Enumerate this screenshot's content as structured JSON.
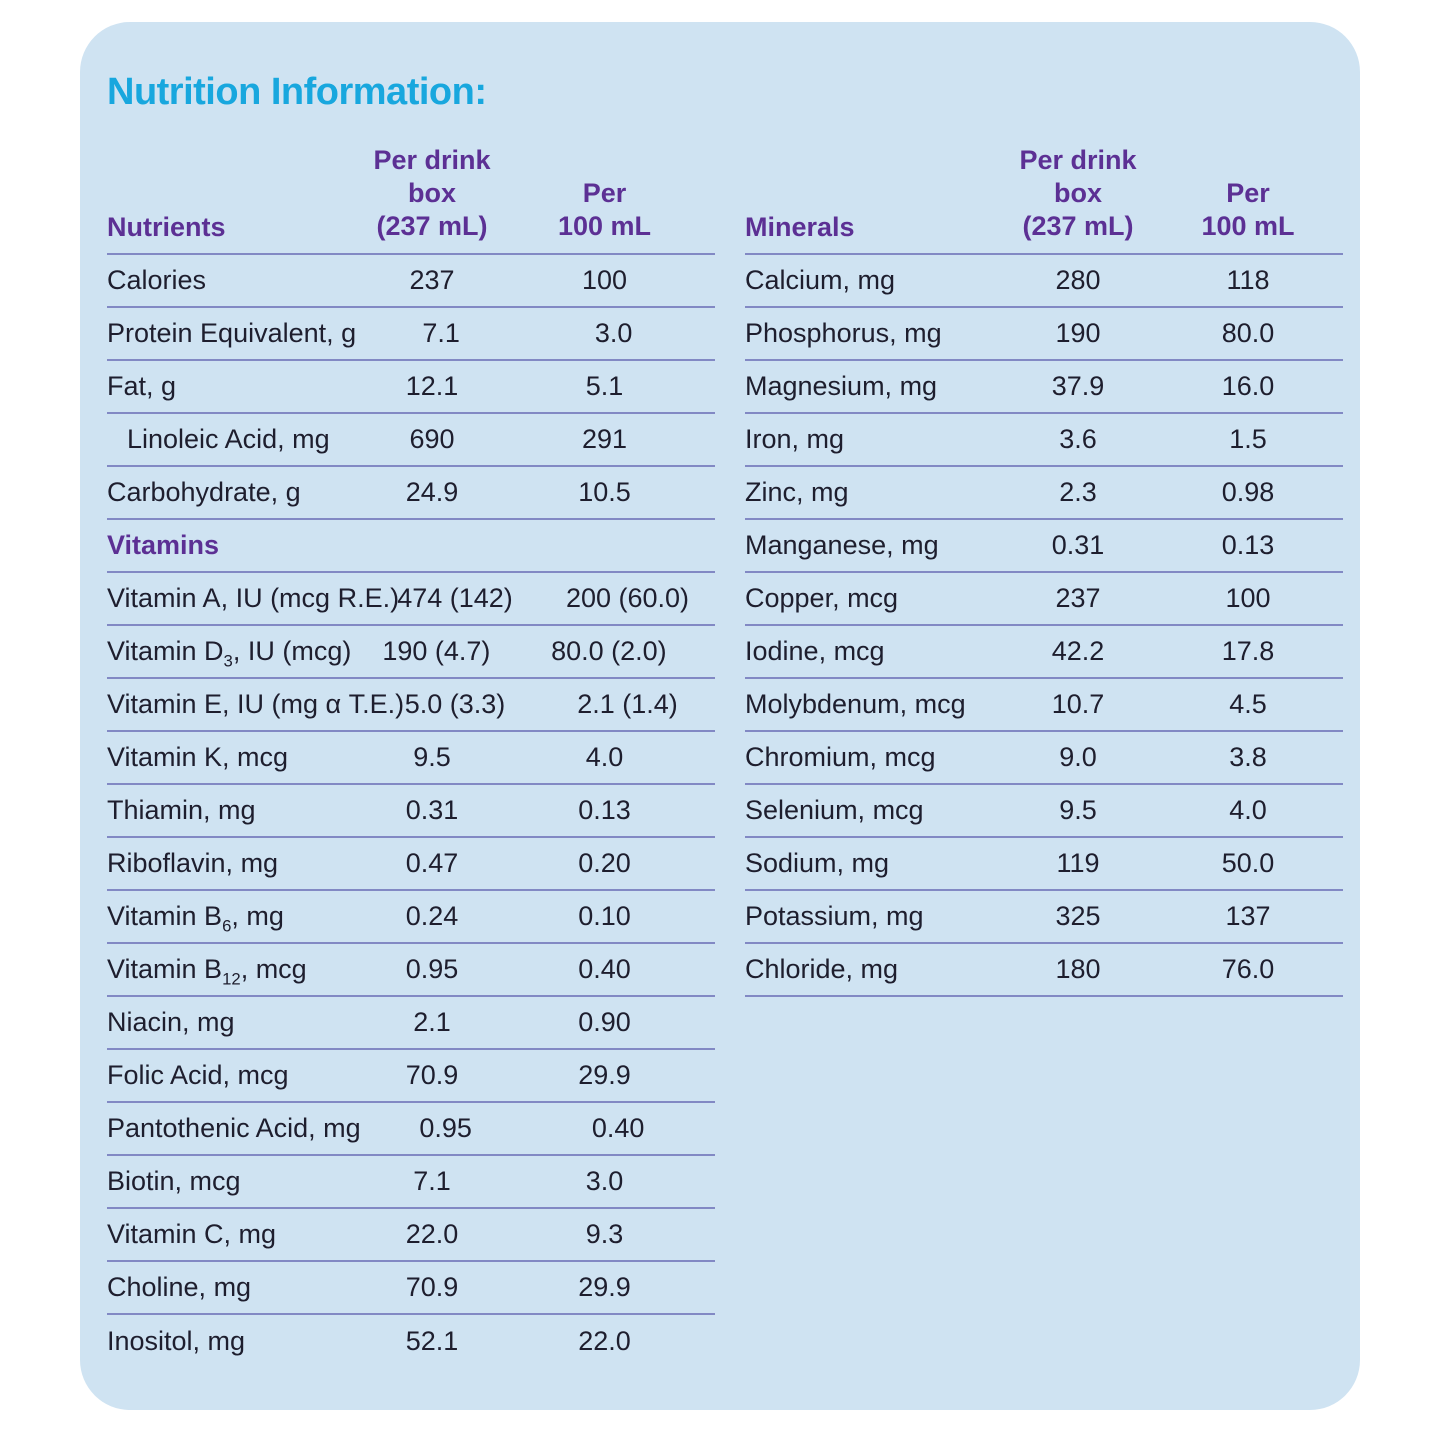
{
  "title": "Nutrition Information:",
  "colors": {
    "title": "#18a7de",
    "section": "#5c3094",
    "text": "#1e1e2e",
    "divider": "#8289c4",
    "card_bg": "#cfe3f2",
    "page_bg": "#ffffff"
  },
  "tables": [
    {
      "id": "nutrients",
      "columns": {
        "label": "Nutrients",
        "col1_line1": "Per drink box",
        "col1_line2": "(237 mL)",
        "col2_line1": "Per",
        "col2_line2": "100 mL"
      },
      "rows": [
        {
          "label": "Calories",
          "per_box": "237",
          "per_100ml": "100"
        },
        {
          "label": "Protein Equivalent, g",
          "per_box": "7.1",
          "per_100ml": "3.0"
        },
        {
          "label": "Fat, g",
          "per_box": "12.1",
          "per_100ml": "5.1"
        },
        {
          "label": "Linoleic Acid, mg",
          "per_box": "690",
          "per_100ml": "291",
          "indent": true
        },
        {
          "label": "Carbohydrate, g",
          "per_box": "24.9",
          "per_100ml": "10.5"
        },
        {
          "section": "Vitamins"
        },
        {
          "label": "Vitamin A, IU (mcg R.E.)",
          "per_box": "474 (142)",
          "per_100ml": "200 (60.0)"
        },
        {
          "label": "Vitamin D~3~, IU (mcg)",
          "per_box": "190 (4.7)",
          "per_100ml": "80.0 (2.0)"
        },
        {
          "label": "Vitamin E, IU (mg α T.E.)",
          "per_box": "5.0 (3.3)",
          "per_100ml": "2.1 (1.4)"
        },
        {
          "label": "Vitamin K, mcg",
          "per_box": "9.5",
          "per_100ml": "4.0"
        },
        {
          "label": "Thiamin, mg",
          "per_box": "0.31",
          "per_100ml": "0.13"
        },
        {
          "label": "Riboflavin, mg",
          "per_box": "0.47",
          "per_100ml": "0.20"
        },
        {
          "label": "Vitamin B~6~, mg",
          "per_box": "0.24",
          "per_100ml": "0.10"
        },
        {
          "label": "Vitamin B~12~, mcg",
          "per_box": "0.95",
          "per_100ml": "0.40"
        },
        {
          "label": "Niacin, mg",
          "per_box": "2.1",
          "per_100ml": "0.90"
        },
        {
          "label": "Folic Acid, mcg",
          "per_box": "70.9",
          "per_100ml": "29.9"
        },
        {
          "label": "Pantothenic Acid, mg",
          "per_box": "0.95",
          "per_100ml": "0.40"
        },
        {
          "label": "Biotin, mcg",
          "per_box": "7.1",
          "per_100ml": "3.0"
        },
        {
          "label": "Vitamin C, mg",
          "per_box": "22.0",
          "per_100ml": "9.3"
        },
        {
          "label": "Choline, mg",
          "per_box": "70.9",
          "per_100ml": "29.9"
        },
        {
          "label": "Inositol, mg",
          "per_box": "52.1",
          "per_100ml": "22.0"
        }
      ]
    },
    {
      "id": "minerals",
      "columns": {
        "label": "Minerals",
        "col1_line1": "Per drink box",
        "col1_line2": "(237 mL)",
        "col2_line1": "Per",
        "col2_line2": "100 mL"
      },
      "rows": [
        {
          "label": "Calcium, mg",
          "per_box": "280",
          "per_100ml": "118"
        },
        {
          "label": "Phosphorus, mg",
          "per_box": "190",
          "per_100ml": "80.0"
        },
        {
          "label": "Magnesium, mg",
          "per_box": "37.9",
          "per_100ml": "16.0"
        },
        {
          "label": "Iron, mg",
          "per_box": "3.6",
          "per_100ml": "1.5"
        },
        {
          "label": "Zinc, mg",
          "per_box": "2.3",
          "per_100ml": "0.98"
        },
        {
          "label": "Manganese, mg",
          "per_box": "0.31",
          "per_100ml": "0.13"
        },
        {
          "label": "Copper, mcg",
          "per_box": "237",
          "per_100ml": "100"
        },
        {
          "label": "Iodine, mcg",
          "per_box": "42.2",
          "per_100ml": "17.8"
        },
        {
          "label": "Molybdenum, mcg",
          "per_box": "10.7",
          "per_100ml": "4.5"
        },
        {
          "label": "Chromium, mcg",
          "per_box": "9.0",
          "per_100ml": "3.8"
        },
        {
          "label": "Selenium, mcg",
          "per_box": "9.5",
          "per_100ml": "4.0"
        },
        {
          "label": "Sodium, mg",
          "per_box": "119",
          "per_100ml": "50.0"
        },
        {
          "label": "Potassium, mg",
          "per_box": "325",
          "per_100ml": "137"
        },
        {
          "label": "Chloride, mg",
          "per_box": "180",
          "per_100ml": "76.0"
        }
      ]
    }
  ]
}
